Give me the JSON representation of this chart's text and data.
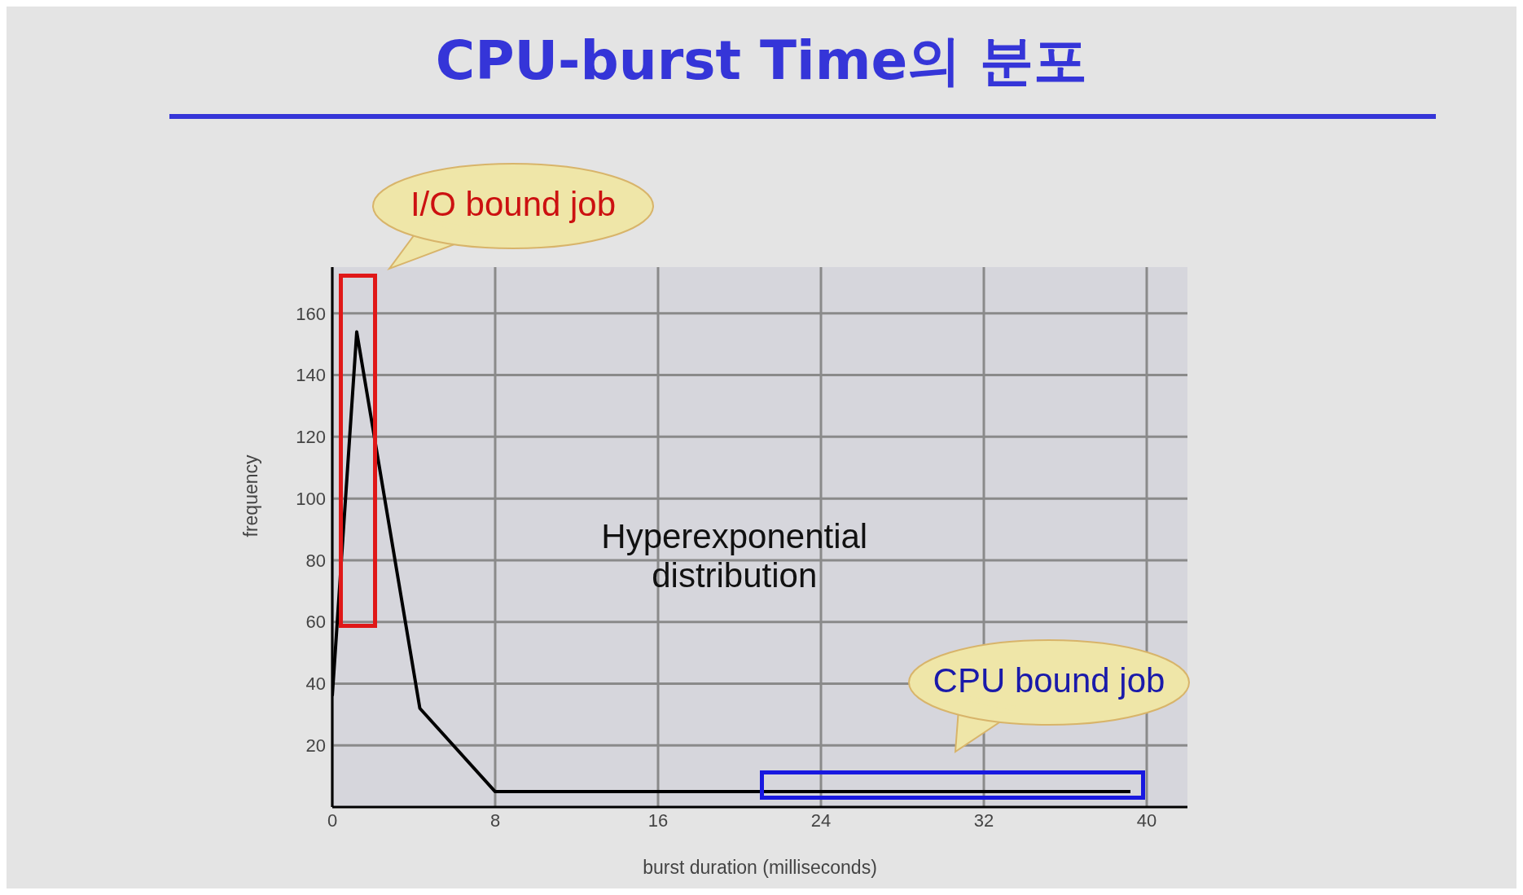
{
  "chart_data": {
    "type": "line",
    "title": "CPU-burst Time의 분포",
    "xlabel": "burst duration (milliseconds)",
    "ylabel": "frequency",
    "x": [
      0,
      1.2,
      4.3,
      8,
      39.2
    ],
    "series": [
      {
        "color": "#000000",
        "values": [
          36,
          154,
          32,
          5,
          5
        ]
      }
    ],
    "xlim": [
      0,
      42
    ],
    "xticks": [
      0,
      8,
      16,
      24,
      32,
      40
    ],
    "ylim": [
      0,
      175
    ],
    "yticks": [
      20,
      40,
      60,
      80,
      100,
      120,
      140,
      160
    ],
    "grid": true,
    "legend": false,
    "marker": "none",
    "line_style": "solid",
    "annotations": [
      "I/O bound job",
      "CPU bound job",
      "Hyperexponential distribution"
    ]
  }
}
